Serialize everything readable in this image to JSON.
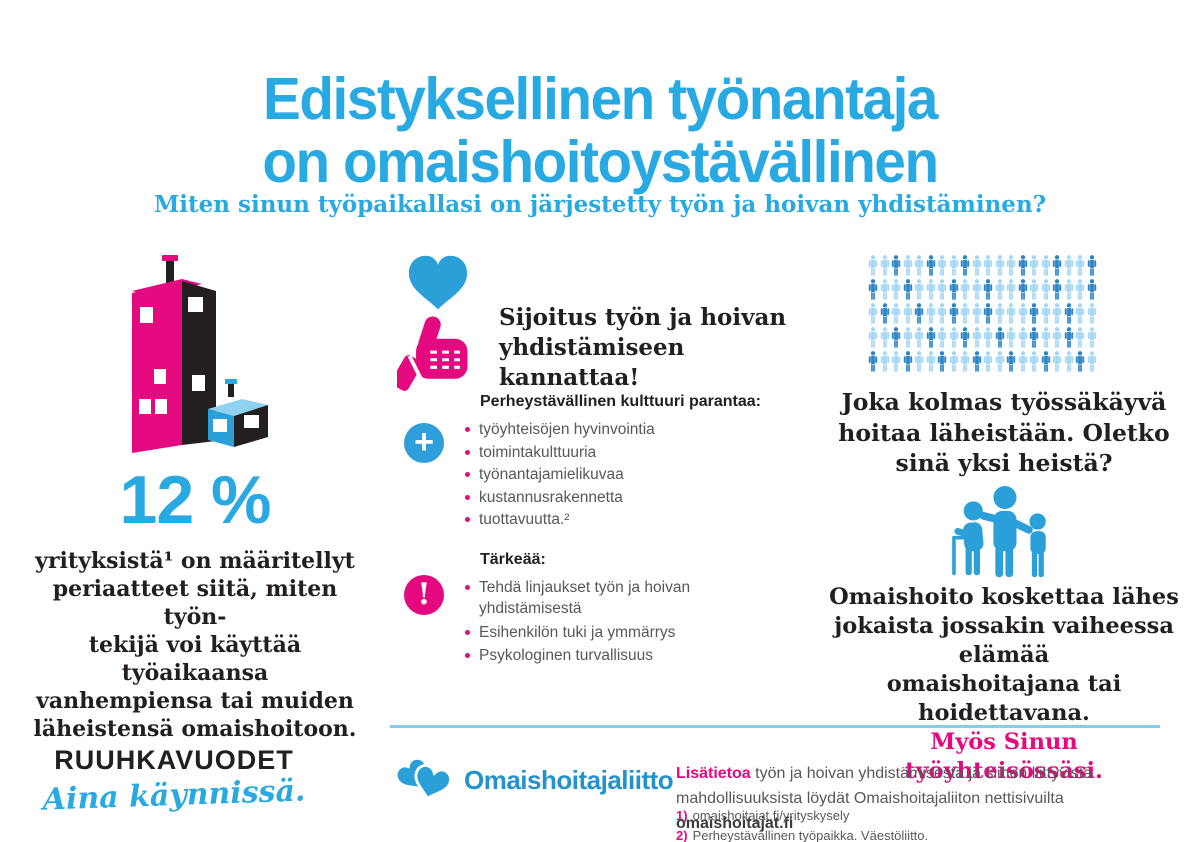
{
  "header": {
    "title_line1": "Edistyksellinen työnantaja",
    "title_line2": "on omaishoitoystävällinen",
    "subtitle": "Miten sinun työpaikallasi on järjestetty työn ja hoivan yhdistäminen?"
  },
  "left": {
    "stat_value": "12 %",
    "stat_text_lines": [
      "yrityksistä¹ on määritellyt",
      "periaatteet siitä, miten työn-",
      "tekijä voi käyttää työaikaansa",
      "vanhempiensa tai muiden",
      "läheistensä omaishoitoon."
    ],
    "brand": {
      "line1": "RUUHKAVUODET",
      "line2": "Aina käynnissä."
    }
  },
  "middle": {
    "headline_lines": [
      "Sijoitus työn ja hoivan",
      "yhdistämiseen kannattaa!"
    ],
    "plus_glyph": "+",
    "excl_glyph": "!",
    "benefits": {
      "heading": "Perheystävällinen kulttuuri parantaa:",
      "items": [
        "työyhteisöjen hyvinvointia",
        "toimintakulttuuria",
        "työnantajamielikuvaa",
        "kustannusrakennetta",
        "tuottavuutta.²"
      ]
    },
    "important": {
      "heading": "Tärkeää:",
      "items": [
        "Tehdä linjaukset työn ja hoivan yhdistämisestä",
        "Esihenkilön tuki ja ymmärrys",
        "Psykologinen turvallisuus"
      ]
    }
  },
  "right": {
    "people_grid": {
      "rows": 5,
      "cols": 20,
      "pattern": [
        "00100100100001001001",
        "10010001001001001001",
        "01001001001000100100",
        "00100100100100100100",
        "10010010010010010010"
      ],
      "light_color": "#a6d7f3",
      "dark_color": "#2e86c6",
      "meaning": "joka kolmas tummennettu"
    },
    "question_lines": [
      "Joka kolmas työssäkäyvä",
      "hoitaa läheistään. Oletko",
      "sinä yksi heistä?"
    ],
    "statement_lines": [
      "Omaishoito koskettaa lähes",
      "jokaista jossakin vaiheessa elämää",
      "omaishoitajana tai hoidettavana."
    ],
    "statement_highlight": "Myös Sinun työyhteisössäsi."
  },
  "footer": {
    "logo_text": "Omaishoitajaliitto",
    "info_lead": "Lisätietoa",
    "info_body": " työn ja hoivan yhdistämisestä ja siihen liittyvistä mahdollisuuksista löydät Omaishoitajaliiton nettisivuilta ",
    "info_link": "omaishoitajat.fi",
    "footnotes": [
      {
        "num": "1)",
        "text": "omaishoitajat.fi/yrityskysely"
      },
      {
        "num": "2)",
        "text": "Perheystävällinen työpaikka. Väestöliitto."
      }
    ]
  },
  "colors": {
    "blue": "#29a9e1",
    "icon_blue": "#2b9fd8",
    "pink": "#e5097f",
    "dark_text": "#231f20",
    "gray_text": "#58585a",
    "divider": "#85cdec"
  }
}
